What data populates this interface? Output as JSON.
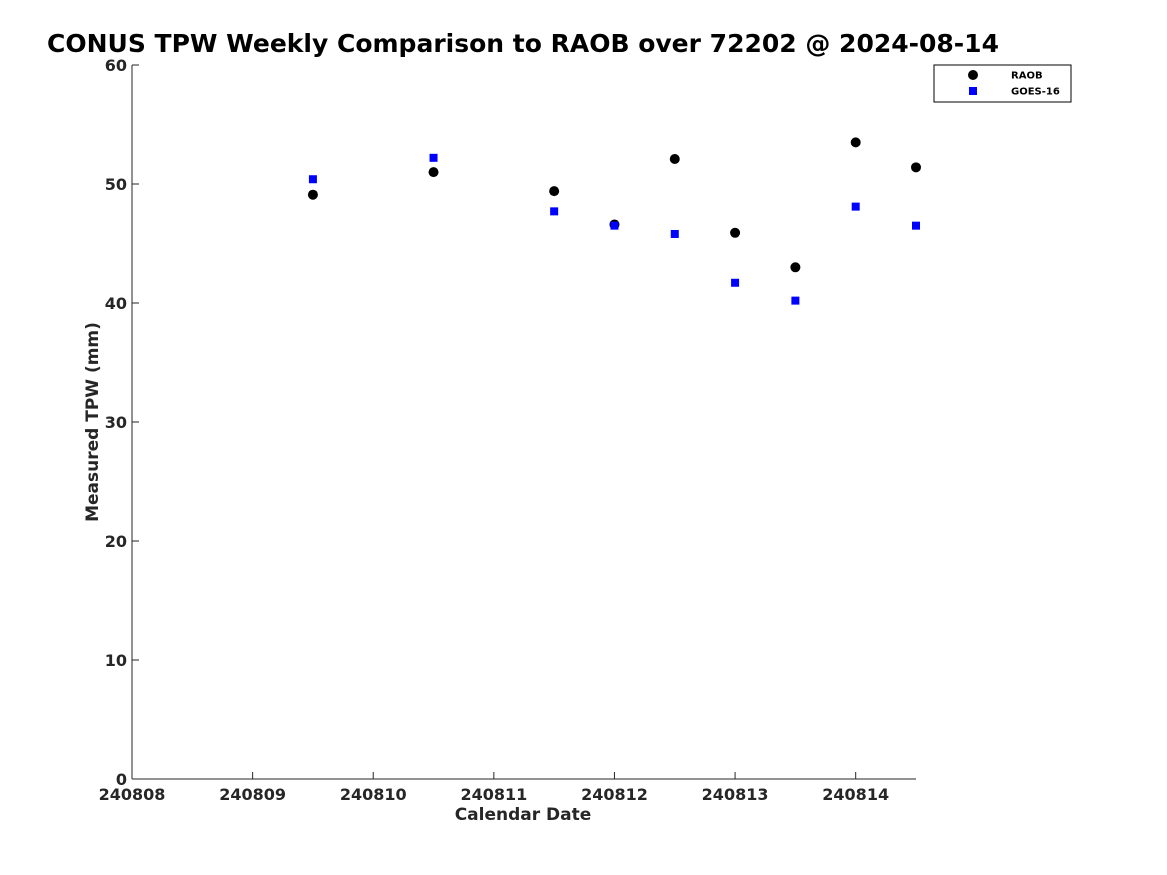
{
  "chart_data": {
    "type": "scatter",
    "title": "CONUS TPW Weekly Comparison to RAOB over 72202 @ 2024-08-14",
    "xlabel": "Calendar Date",
    "ylabel": "Measured TPW (mm)",
    "x_tick_labels": [
      "240808",
      "240809",
      "240810",
      "240811",
      "240812",
      "240813",
      "240814"
    ],
    "y_tick_labels": [
      "0",
      "10",
      "20",
      "30",
      "40",
      "50",
      "60"
    ],
    "xlim": [
      "2024-08-08 00:00",
      "2024-08-14 12:00"
    ],
    "ylim": [
      0,
      60
    ],
    "grid": false,
    "legend_position": "top-right",
    "series": [
      {
        "name": "RAOB",
        "marker": "circle",
        "color": "#000000",
        "points": [
          {
            "x": "2024-08-09 12:00",
            "y": 49.1
          },
          {
            "x": "2024-08-10 12:00",
            "y": 51.0
          },
          {
            "x": "2024-08-11 12:00",
            "y": 49.4
          },
          {
            "x": "2024-08-12 00:00",
            "y": 46.6
          },
          {
            "x": "2024-08-12 12:00",
            "y": 52.1
          },
          {
            "x": "2024-08-13 00:00",
            "y": 45.9
          },
          {
            "x": "2024-08-13 12:00",
            "y": 43.0
          },
          {
            "x": "2024-08-14 00:00",
            "y": 53.5
          },
          {
            "x": "2024-08-14 12:00",
            "y": 51.4
          }
        ]
      },
      {
        "name": "GOES-16",
        "marker": "square",
        "color": "#0000ff",
        "points": [
          {
            "x": "2024-08-09 12:00",
            "y": 50.4
          },
          {
            "x": "2024-08-10 12:00",
            "y": 52.2
          },
          {
            "x": "2024-08-11 12:00",
            "y": 47.7
          },
          {
            "x": "2024-08-12 00:00",
            "y": 46.5
          },
          {
            "x": "2024-08-12 12:00",
            "y": 45.8
          },
          {
            "x": "2024-08-13 00:00",
            "y": 41.7
          },
          {
            "x": "2024-08-13 12:00",
            "y": 40.2
          },
          {
            "x": "2024-08-14 00:00",
            "y": 48.1
          },
          {
            "x": "2024-08-14 12:00",
            "y": 46.5
          }
        ]
      }
    ]
  }
}
